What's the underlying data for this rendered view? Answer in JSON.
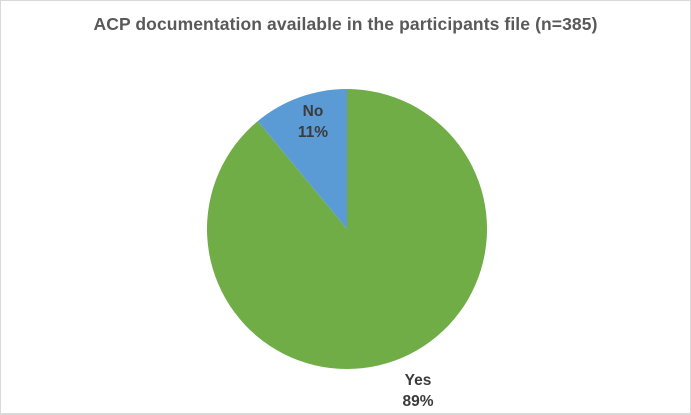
{
  "chart_data": {
    "type": "pie",
    "title": "ACP documentation available in the participants file (n=385)",
    "n": 385,
    "start_angle_deg": 0,
    "direction": "clockwise",
    "legend": "none",
    "slices": [
      {
        "label": "Yes",
        "value": 89,
        "pct_label": "89%",
        "color": "#70ad47"
      },
      {
        "label": "No",
        "value": 11,
        "pct_label": "11%",
        "color": "#5b9bd5"
      }
    ]
  },
  "colors": {
    "title_text": "#595959",
    "data_label_text": "#3b3b3b",
    "background": "#ffffff",
    "border": "#d9d9d9"
  }
}
